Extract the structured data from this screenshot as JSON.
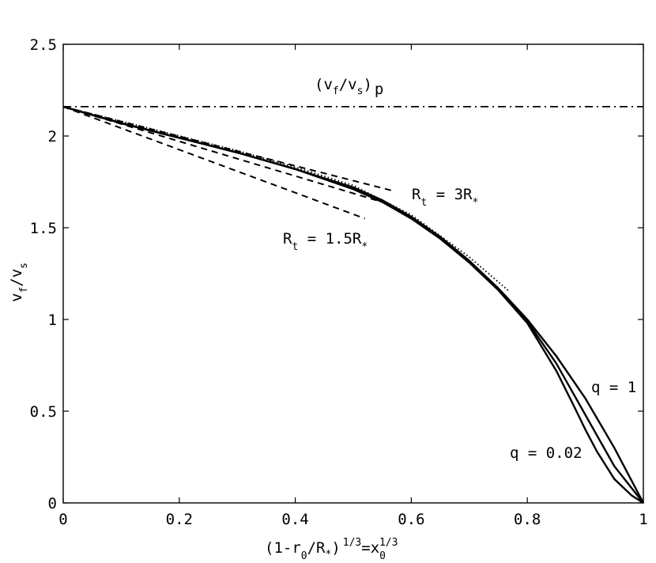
{
  "chart_data": {
    "type": "line",
    "xlabel": "(1-r0/R*)1/3=x01/3",
    "ylabel": "vf/vs",
    "xlim": [
      0,
      1
    ],
    "ylim": [
      0,
      2.5
    ],
    "xticks": [
      "0",
      "0.2",
      "0.4",
      "0.6",
      "0.8",
      "1"
    ],
    "yticks": [
      "0",
      "0.5",
      "1",
      "1.5",
      "2",
      "2.5"
    ],
    "grid": false,
    "series": [
      {
        "name": "q = 1",
        "style": "solid",
        "x": [
          0,
          0.1,
          0.2,
          0.3,
          0.4,
          0.5,
          0.55,
          0.6,
          0.65,
          0.7,
          0.75,
          0.8,
          0.85,
          0.9,
          0.95,
          0.98,
          1.0
        ],
        "y": [
          2.16,
          2.07,
          1.99,
          1.91,
          1.82,
          1.72,
          1.65,
          1.56,
          1.45,
          1.32,
          1.17,
          1.0,
          0.8,
          0.57,
          0.3,
          0.12,
          0
        ]
      },
      {
        "name": "q = 0.02",
        "style": "solid",
        "x": [
          0,
          0.1,
          0.2,
          0.3,
          0.4,
          0.5,
          0.55,
          0.6,
          0.65,
          0.7,
          0.75,
          0.8,
          0.85,
          0.88,
          0.9,
          0.92,
          0.95,
          0.98,
          1.0
        ],
        "y": [
          2.16,
          2.07,
          1.99,
          1.91,
          1.82,
          1.71,
          1.64,
          1.55,
          1.44,
          1.31,
          1.16,
          0.98,
          0.72,
          0.53,
          0.4,
          0.28,
          0.13,
          0.04,
          0
        ]
      },
      {
        "name": "",
        "style": "solid",
        "x": [
          0,
          0.1,
          0.2,
          0.3,
          0.4,
          0.5,
          0.55,
          0.6,
          0.65,
          0.7,
          0.75,
          0.8,
          0.85,
          0.9,
          0.95,
          1.0
        ],
        "y": [
          2.16,
          2.07,
          1.99,
          1.91,
          1.82,
          1.715,
          1.645,
          1.555,
          1.445,
          1.315,
          1.165,
          0.99,
          0.76,
          0.48,
          0.2,
          0
        ]
      },
      {
        "name": "",
        "style": "dotted",
        "x": [
          0,
          0.1,
          0.2,
          0.3,
          0.4,
          0.5,
          0.6,
          0.7,
          0.77
        ],
        "y": [
          2.16,
          2.08,
          2.0,
          1.92,
          1.83,
          1.73,
          1.57,
          1.34,
          1.15
        ]
      },
      {
        "name": "R_t = 3R*",
        "style": "dashed",
        "x": [
          0,
          0.57
        ],
        "y": [
          2.16,
          1.7
        ]
      },
      {
        "name": "",
        "style": "dashed",
        "x": [
          0,
          0.55
        ],
        "y": [
          2.16,
          1.64
        ]
      },
      {
        "name": "R_t = 1.5R*",
        "style": "dashed",
        "x": [
          0,
          0.52
        ],
        "y": [
          2.16,
          1.55
        ]
      },
      {
        "name": "(vf/vs)p",
        "style": "dashdot",
        "x": [
          0,
          1
        ],
        "y": [
          2.16,
          2.16
        ]
      }
    ],
    "annotations": {
      "vp_main": "(v",
      "vp_f": "f",
      "vp_mid": "/v",
      "vp_s": "s",
      "vp_close": ")",
      "vp_p": "p",
      "rt3_r": "R",
      "rt3_t": "t",
      "rt3_rest": " = 3R",
      "rt3_star": "*",
      "rt15_r": "R",
      "rt15_t": "t",
      "rt15_rest": " = 1.5R",
      "rt15_star": "*",
      "q1": "q = 1",
      "q002": "q = 0.02"
    },
    "axis_text": {
      "x_open": "(1-r",
      "x_0": "0",
      "x_mid": "/R",
      "x_star": "*",
      "x_close": ")",
      "x_exp": "1/3",
      "x_eq": "=x",
      "x_0b": "0",
      "x_exp2": "1/3",
      "y_v": "v",
      "y_f": "f",
      "y_slash": "/v",
      "y_s": "s"
    }
  }
}
